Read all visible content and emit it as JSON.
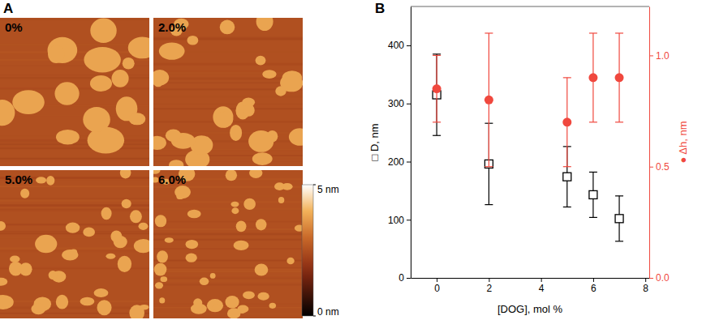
{
  "chart_data": [
    {
      "type": "image",
      "title": "A",
      "panels": [
        "0%",
        "2.0%",
        "5.0%",
        "6.0%"
      ],
      "colorbar": {
        "range": [
          0,
          5
        ],
        "ticks": [
          {
            "value": 5,
            "label": "5 nm"
          },
          {
            "value": 0,
            "label": "0 nm"
          }
        ]
      }
    },
    {
      "type": "scatter",
      "title": "B",
      "x_label": "[DOG], mol %",
      "y_label": "□ D, nm",
      "y2_label": "● Δh, nm",
      "x": [
        0,
        2,
        5,
        6,
        7
      ],
      "xlim": [
        -1,
        8.15
      ],
      "xticks": [
        0,
        2,
        4,
        6,
        8
      ],
      "ylim": [
        0,
        467
      ],
      "yticks": [
        0,
        100,
        200,
        300,
        400
      ],
      "y2lim": [
        0,
        1.22
      ],
      "y2ticks": [
        {
          "value": 0,
          "label": "0.0"
        },
        {
          "value": 0.5,
          "label": "0.5"
        },
        {
          "value": 1,
          "label": "1.0"
        }
      ],
      "series": [
        {
          "color": "#000000",
          "marker": "open-square",
          "values": [
            315,
            196,
            174,
            143,
            102
          ],
          "error": [
            70,
            70,
            52,
            39,
            39
          ]
        },
        {
          "color": "#f0483e",
          "marker": "circle",
          "axis": "y2",
          "values": [
            0.85,
            0.8,
            0.7,
            0.9,
            0.9
          ],
          "error": [
            0.15,
            0.3,
            0.2,
            0.2,
            0.2
          ]
        }
      ]
    }
  ]
}
